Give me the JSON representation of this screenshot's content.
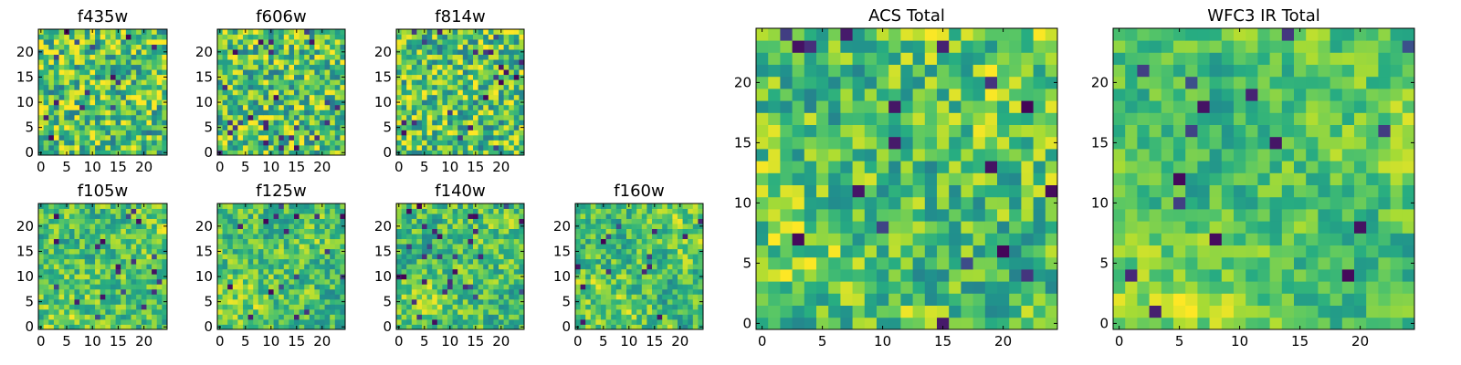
{
  "chart_data": [
    {
      "type": "heatmap",
      "title": "f435w",
      "xticks": [
        0,
        5,
        10,
        15,
        20
      ],
      "yticks": [
        0,
        5,
        10,
        15,
        20
      ],
      "xlim": [
        0,
        25
      ],
      "ylim": [
        0,
        25
      ],
      "grid": false,
      "colormap": "viridis",
      "n": 25,
      "smooth": 0.15,
      "seed": 11
    },
    {
      "type": "heatmap",
      "title": "f606w",
      "xticks": [
        0,
        5,
        10,
        15,
        20
      ],
      "yticks": [
        0,
        5,
        10,
        15,
        20
      ],
      "xlim": [
        0,
        25
      ],
      "ylim": [
        0,
        25
      ],
      "grid": false,
      "colormap": "viridis",
      "n": 25,
      "smooth": 0.15,
      "seed": 23
    },
    {
      "type": "heatmap",
      "title": "f814w",
      "xticks": [
        0,
        5,
        10,
        15,
        20
      ],
      "yticks": [
        0,
        5,
        10,
        15,
        20
      ],
      "xlim": [
        0,
        25
      ],
      "ylim": [
        0,
        25
      ],
      "grid": false,
      "colormap": "viridis",
      "n": 25,
      "smooth": 0.15,
      "seed": 37
    },
    {
      "type": "heatmap",
      "title": "f105w",
      "xticks": [
        0,
        5,
        10,
        15,
        20
      ],
      "yticks": [
        0,
        5,
        10,
        15,
        20
      ],
      "xlim": [
        0,
        25
      ],
      "ylim": [
        0,
        25
      ],
      "grid": false,
      "colormap": "viridis",
      "n": 25,
      "smooth": 0.45,
      "seed": 41
    },
    {
      "type": "heatmap",
      "title": "f125w",
      "xticks": [
        0,
        5,
        10,
        15,
        20
      ],
      "yticks": [
        0,
        5,
        10,
        15,
        20
      ],
      "xlim": [
        0,
        25
      ],
      "ylim": [
        0,
        25
      ],
      "grid": false,
      "colormap": "viridis",
      "n": 25,
      "smooth": 0.45,
      "seed": 53
    },
    {
      "type": "heatmap",
      "title": "f140w",
      "xticks": [
        0,
        5,
        10,
        15,
        20
      ],
      "yticks": [
        0,
        5,
        10,
        15,
        20
      ],
      "xlim": [
        0,
        25
      ],
      "ylim": [
        0,
        25
      ],
      "grid": false,
      "colormap": "viridis",
      "n": 25,
      "smooth": 0.45,
      "seed": 67
    },
    {
      "type": "heatmap",
      "title": "f160w",
      "xticks": [
        0,
        5,
        10,
        15,
        20
      ],
      "yticks": [
        0,
        5,
        10,
        15,
        20
      ],
      "xlim": [
        0,
        25
      ],
      "ylim": [
        0,
        25
      ],
      "grid": false,
      "colormap": "viridis",
      "n": 25,
      "smooth": 0.45,
      "seed": 79
    },
    {
      "type": "heatmap",
      "title": "ACS Total",
      "xticks": [
        0,
        5,
        10,
        15,
        20
      ],
      "yticks": [
        0,
        5,
        10,
        15,
        20
      ],
      "xlim": [
        0,
        25
      ],
      "ylim": [
        0,
        25
      ],
      "grid": false,
      "colormap": "viridis",
      "n": 25,
      "smooth": 0.35,
      "seed": 91
    },
    {
      "type": "heatmap",
      "title": "WFC3 IR Total",
      "xticks": [
        0,
        5,
        10,
        15,
        20
      ],
      "yticks": [
        0,
        5,
        10,
        15,
        20
      ],
      "xlim": [
        0,
        25
      ],
      "ylim": [
        0,
        25
      ],
      "grid": false,
      "colormap": "viridis",
      "n": 25,
      "smooth": 0.6,
      "seed": 103
    }
  ]
}
